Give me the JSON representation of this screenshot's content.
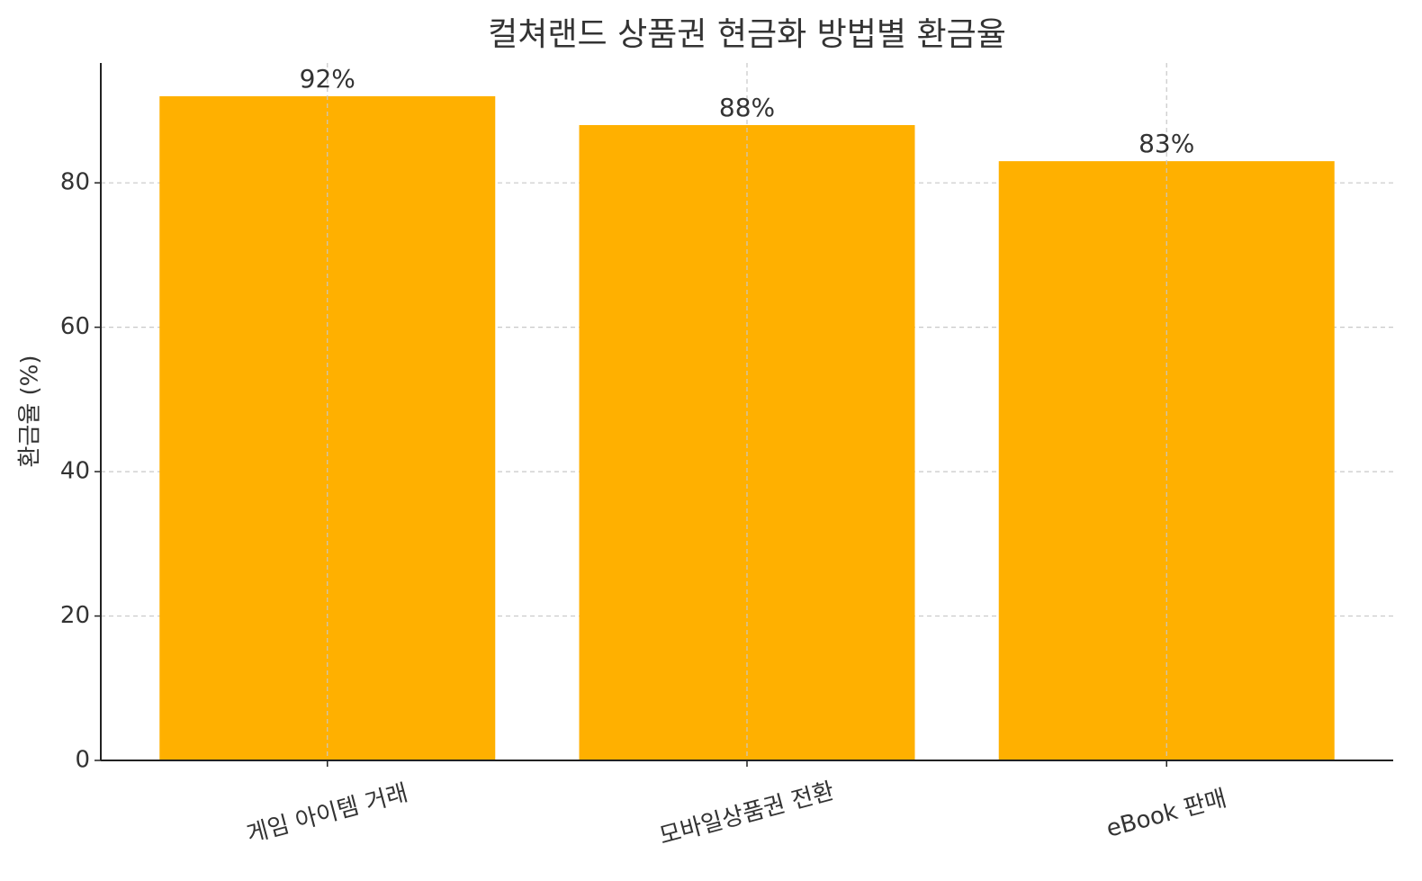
{
  "chart_data": {
    "type": "bar",
    "title": "컬쳐랜드 상품권 현금화 방법별 환금율",
    "y_label": "환금율 (%)",
    "categories": [
      "게임 아이템 거래",
      "모바일상품권 전환",
      "eBook 판매"
    ],
    "values": [
      92,
      88,
      83
    ],
    "value_labels": [
      "92%",
      "88%",
      "83%"
    ],
    "color": "#ffb000",
    "ylim": [
      0,
      96.6
    ],
    "yticks": [
      0,
      20,
      40,
      60,
      80
    ],
    "grid": true
  }
}
